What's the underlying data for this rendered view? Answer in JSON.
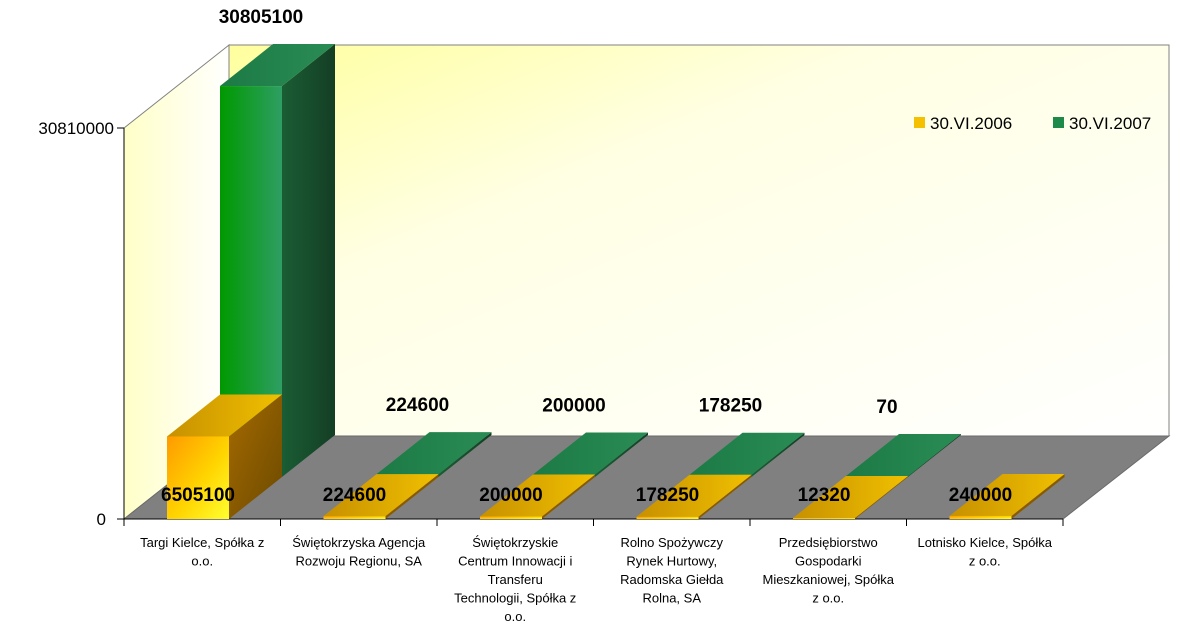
{
  "chart_data": {
    "type": "bar",
    "categories": [
      "Targi Kielce, Spółka z o.o.",
      "Świętokrzyska Agencja Rozwoju Regionu, SA",
      "Świętokrzyskie Centrum Innowacji i Transferu Technologii, Spółka z o.o.",
      "Rolno Spożywczy Rynek Hurtowy, Radomska Giełda Rolna, SA",
      "Przedsiębiorstwo Gospodarki Mieszkaniowej, Spółka z o.o.",
      "Lotnisko Kielce, Spółka z o.o."
    ],
    "category_lines": [
      [
        "Targi Kielce, Spółka z",
        "o.o."
      ],
      [
        "Świętokrzyska Agencja",
        "Rozwoju Regionu, SA"
      ],
      [
        "Świętokrzyskie",
        "Centrum Innowacji i",
        "Transferu",
        "Technologii, Spółka z",
        "o.o."
      ],
      [
        "Rolno Spożywczy",
        "Rynek Hurtowy,",
        "Radomska Giełda",
        "Rolna, SA"
      ],
      [
        "Przedsiębiorstwo",
        "Gospodarki",
        "Mieszkaniowej, Spółka",
        "z o.o."
      ],
      [
        "Lotnisko Kielce, Spółka",
        "z o.o."
      ]
    ],
    "series": [
      {
        "name": "30.VI.2006",
        "values": [
          6505100,
          224600,
          200000,
          178250,
          12320,
          240000
        ],
        "labels": [
          "6505100",
          "224600",
          "200000",
          "178250",
          "12320",
          "240000"
        ],
        "color": "#F5C000"
      },
      {
        "name": "30.VI.2007",
        "values": [
          30805100,
          224600,
          200000,
          178250,
          70,
          null
        ],
        "labels": [
          "30805100",
          "224600",
          "200000",
          "178250",
          "70",
          ""
        ],
        "color": "#1E8A4A"
      }
    ],
    "yticks": [
      "30810000",
      "0"
    ],
    "ylim": [
      0,
      30810000
    ],
    "legend_position": "right",
    "grid": false,
    "style": "3d-clustered-column"
  }
}
